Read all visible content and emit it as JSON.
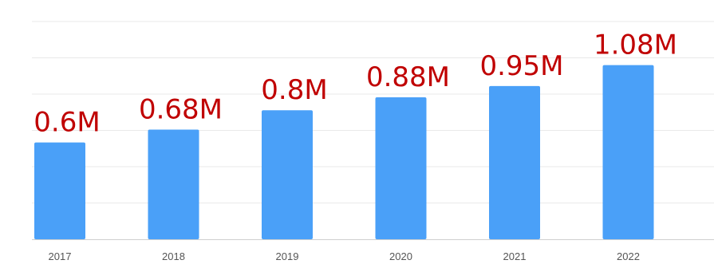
{
  "chart_data": {
    "type": "bar",
    "title": "",
    "xlabel": "",
    "ylabel": "",
    "categories": [
      "2017",
      "2018",
      "2019",
      "2020",
      "2021",
      "2022"
    ],
    "values": [
      0.6,
      0.68,
      0.8,
      0.88,
      0.95,
      1.08
    ],
    "data_labels": [
      "0.6M",
      "0.68M",
      "0.8M",
      "0.88M",
      "0.95M",
      "1.08M"
    ],
    "ylim": [
      0,
      1.35
    ],
    "grid": true,
    "legend": "none",
    "bar_color": "#4aa0f8",
    "label_color": "#c00000"
  }
}
